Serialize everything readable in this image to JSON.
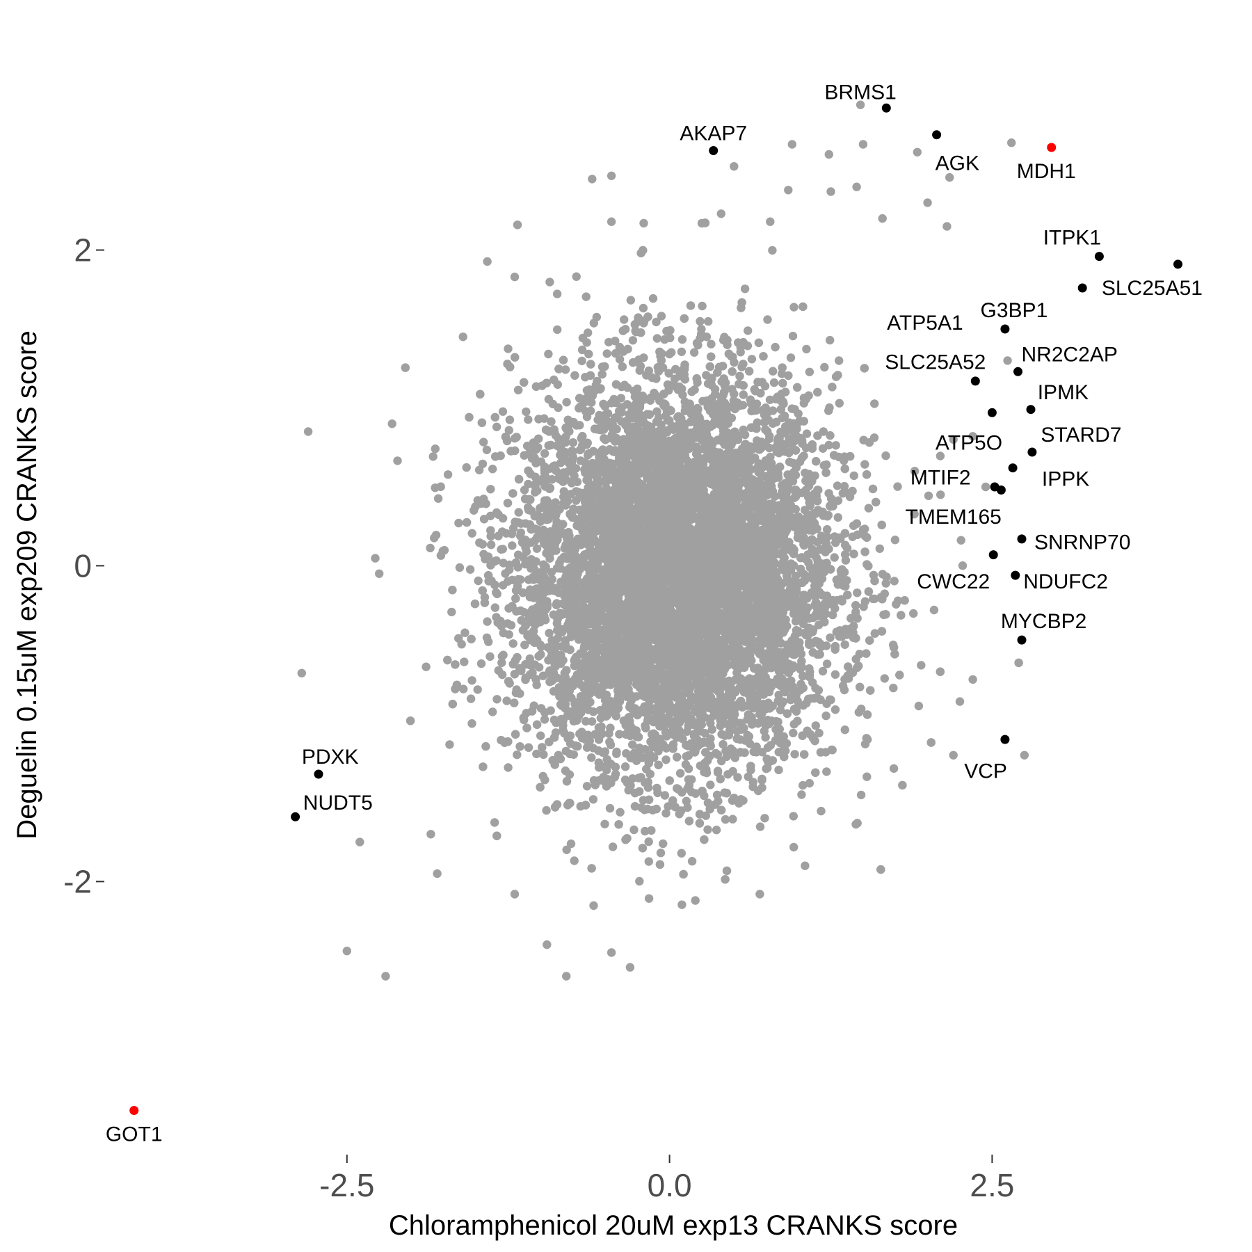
{
  "chart_data": {
    "type": "scatter",
    "xlabel": "Chloramphenicol 20uM exp13 CRANKS score",
    "ylabel": "Deguelin 0.15uM exp209 CRANKS score",
    "xlim": [
      -4.38,
      4.46
    ],
    "ylim": [
      -3.73,
      3.54
    ],
    "x_ticks": [
      -2.5,
      0.0,
      2.5
    ],
    "x_tick_labels": [
      "-2.5",
      "0.0",
      "2.5"
    ],
    "y_ticks": [
      -2,
      0,
      2
    ],
    "y_tick_labels": [
      "-2",
      "0",
      "2"
    ],
    "grid": false,
    "colors": {
      "background": "#a0a0a0",
      "highlight": "#000000",
      "top_hit": "#ff0000"
    },
    "background_points": {
      "description_count": 9000,
      "center": [
        0.05,
        -0.05
      ],
      "sd": [
        0.62,
        0.62
      ],
      "outliers": [
        [
          1.48,
          2.92
        ],
        [
          1.5,
          2.67
        ],
        [
          2.65,
          2.68
        ],
        [
          1.92,
          2.62
        ],
        [
          0.95,
          2.67
        ],
        [
          0.5,
          2.53
        ],
        [
          -0.6,
          2.45
        ],
        [
          -0.45,
          2.47
        ],
        [
          2.17,
          2.46
        ],
        [
          0.92,
          2.38
        ],
        [
          1.25,
          2.37
        ],
        [
          1.45,
          2.4
        ],
        [
          2.0,
          2.3
        ],
        [
          0.4,
          2.23
        ],
        [
          -0.45,
          2.18
        ],
        [
          -0.2,
          2.17
        ],
        [
          0.25,
          2.17
        ],
        [
          0.78,
          2.18
        ],
        [
          1.65,
          2.2
        ],
        [
          2.15,
          2.15
        ],
        [
          -2.15,
          0.9
        ],
        [
          -2.8,
          0.85
        ],
        [
          -2.85,
          -0.68
        ],
        [
          -2.5,
          -2.44
        ],
        [
          -2.2,
          -2.6
        ],
        [
          -0.8,
          -2.6
        ],
        [
          -0.45,
          -2.45
        ],
        [
          -0.95,
          -2.4
        ],
        [
          -1.2,
          -2.08
        ],
        [
          0.2,
          -2.12
        ],
        [
          0.7,
          -2.08
        ],
        [
          1.05,
          -1.9
        ],
        [
          2.35,
          -0.72
        ],
        [
          2.25,
          -0.86
        ],
        [
          2.75,
          -1.2
        ],
        [
          2.2,
          -1.2
        ],
        [
          1.95,
          -0.63
        ],
        [
          2.05,
          -0.28
        ],
        [
          1.9,
          0.6
        ],
        [
          2.1,
          0.45
        ],
        [
          2.45,
          0.5
        ],
        [
          2.2,
          0.8
        ],
        [
          -2.25,
          -0.05
        ],
        [
          -2.4,
          -1.75
        ],
        [
          -1.85,
          -1.7
        ],
        [
          -1.8,
          -1.95
        ],
        [
          -1.6,
          1.45
        ],
        [
          -1.2,
          1.83
        ],
        [
          2.35,
          0.82
        ],
        [
          2.62,
          1.3
        ]
      ]
    },
    "highlighted_points": [
      {
        "gene": "BRMS1",
        "x": 1.68,
        "y": 2.9,
        "color": "#000000"
      },
      {
        "gene": "AKAP7",
        "x": 0.34,
        "y": 2.63,
        "color": "#000000"
      },
      {
        "gene": "AGK",
        "x": 2.07,
        "y": 2.73,
        "color": "#000000"
      },
      {
        "gene": "MDH1",
        "x": 2.96,
        "y": 2.65,
        "color": "#ff0000"
      },
      {
        "gene": "ITPK1",
        "x": 3.33,
        "y": 1.96,
        "color": "#000000"
      },
      {
        "gene": "SLC25A51",
        "x": 3.94,
        "y": 1.91,
        "color": "#000000"
      },
      {
        "gene": "SLC25A51b",
        "x": 3.2,
        "y": 1.76,
        "color": "#000000"
      },
      {
        "gene": "G3BP1",
        "x": 2.6,
        "y": 1.5,
        "color": "#000000"
      },
      {
        "gene": "NR2C2AP",
        "x": 2.7,
        "y": 1.23,
        "color": "#000000"
      },
      {
        "gene": "SLC25A52",
        "x": 2.37,
        "y": 1.17,
        "color": "#000000"
      },
      {
        "gene": "IPMK",
        "x": 2.8,
        "y": 0.99,
        "color": "#000000"
      },
      {
        "gene": "ATP5A1",
        "x": 2.5,
        "y": 0.97,
        "color": "#000000"
      },
      {
        "gene": "STARD7",
        "x": 2.81,
        "y": 0.72,
        "color": "#000000"
      },
      {
        "gene": "ATP5O",
        "x": 2.66,
        "y": 0.62,
        "color": "#000000"
      },
      {
        "gene": "MTIF2",
        "x": 2.52,
        "y": 0.5,
        "color": "#000000"
      },
      {
        "gene": "IPPK",
        "x": 2.57,
        "y": 0.48,
        "color": "#000000"
      },
      {
        "gene": "SNRNP70",
        "x": 2.73,
        "y": 0.17,
        "color": "#000000"
      },
      {
        "gene": "TMEM165",
        "x": 2.51,
        "y": 0.07,
        "color": "#000000"
      },
      {
        "gene": "NDUFC2",
        "x": 2.68,
        "y": -0.06,
        "color": "#000000"
      },
      {
        "gene": "MYCBP2",
        "x": 2.73,
        "y": -0.47,
        "color": "#000000"
      },
      {
        "gene": "VCP",
        "x": 2.6,
        "y": -1.1,
        "color": "#000000"
      },
      {
        "gene": "PDXK",
        "x": -2.72,
        "y": -1.32,
        "color": "#000000"
      },
      {
        "gene": "NUDT5",
        "x": -2.9,
        "y": -1.59,
        "color": "#000000"
      },
      {
        "gene": "GOT1",
        "x": -4.15,
        "y": -3.45,
        "color": "#ff0000"
      }
    ],
    "labels": [
      {
        "text": "BRMS1",
        "x": 1.48,
        "y": 3.0
      },
      {
        "text": "AKAP7",
        "x": 0.34,
        "y": 2.74
      },
      {
        "text": "AGK",
        "x": 2.23,
        "y": 2.55
      },
      {
        "text": "MDH1",
        "x": 2.92,
        "y": 2.5
      },
      {
        "text": "ITPK1",
        "x": 3.12,
        "y": 2.08
      },
      {
        "text": "SLC25A51",
        "x": 3.74,
        "y": 1.76
      },
      {
        "text": "G3BP1",
        "x": 2.67,
        "y": 1.62
      },
      {
        "text": "ATP5A1",
        "x": 1.98,
        "y": 1.54
      },
      {
        "text": "NR2C2AP",
        "x": 3.1,
        "y": 1.34
      },
      {
        "text": "SLC25A52",
        "x": 2.06,
        "y": 1.29
      },
      {
        "text": "IPMK",
        "x": 3.05,
        "y": 1.1
      },
      {
        "text": "STARD7",
        "x": 3.19,
        "y": 0.83
      },
      {
        "text": "ATP5O",
        "x": 2.32,
        "y": 0.78
      },
      {
        "text": "MTIF2",
        "x": 2.1,
        "y": 0.56
      },
      {
        "text": "IPPK",
        "x": 3.07,
        "y": 0.55
      },
      {
        "text": "TMEM165",
        "x": 2.2,
        "y": 0.31
      },
      {
        "text": "SNRNP70",
        "x": 3.2,
        "y": 0.15
      },
      {
        "text": "CWC22",
        "x": 2.2,
        "y": -0.1
      },
      {
        "text": "NDUFC2",
        "x": 3.07,
        "y": -0.1
      },
      {
        "text": "MYCBP2",
        "x": 2.9,
        "y": -0.35
      },
      {
        "text": "VCP",
        "x": 2.45,
        "y": -1.3
      },
      {
        "text": "PDXK",
        "x": -2.63,
        "y": -1.21
      },
      {
        "text": "NUDT5",
        "x": -2.57,
        "y": -1.5
      },
      {
        "text": "GOT1",
        "x": -4.15,
        "y": -3.6
      }
    ]
  }
}
